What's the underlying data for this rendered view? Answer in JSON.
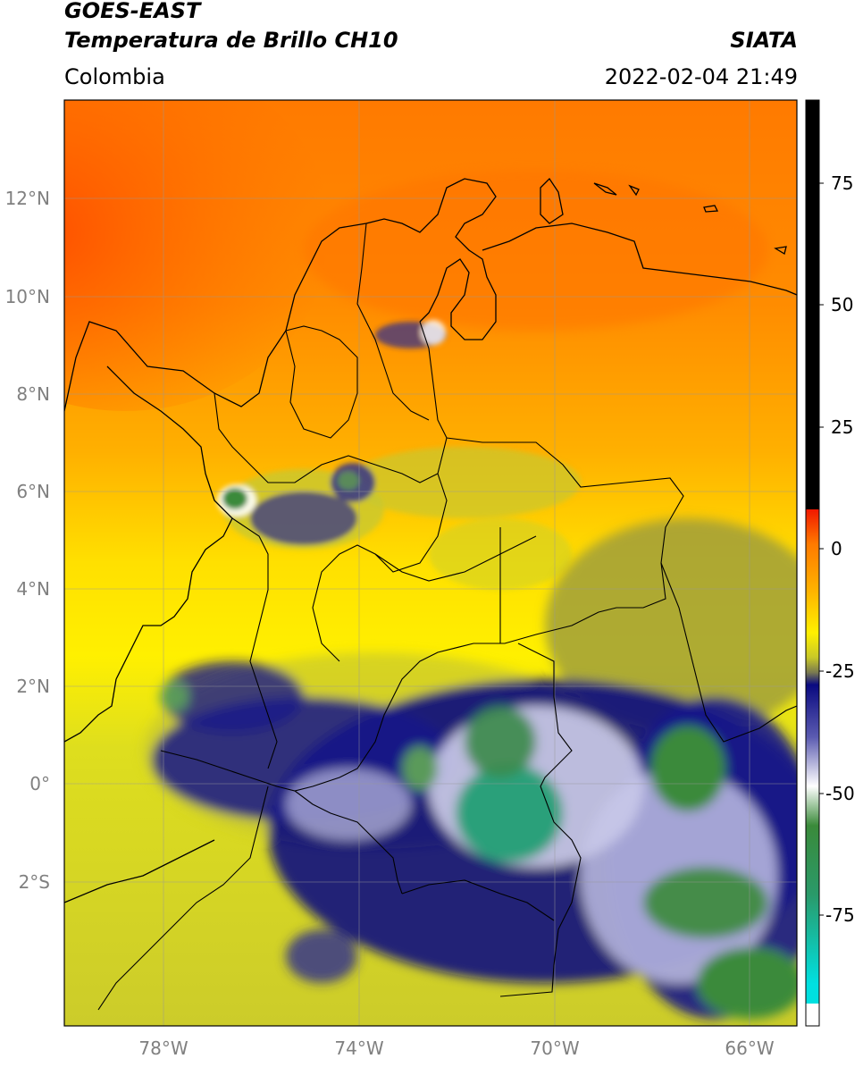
{
  "header": {
    "satellite": "GOES-EAST",
    "product": "Temperatura de Brillo CH10",
    "region": "Colombia",
    "source": "SIATA",
    "datetime": "2022-02-04 21:49"
  },
  "map": {
    "lon_range": [
      -80,
      -65
    ],
    "lat_range": [
      -5,
      14
    ],
    "lat_ticks": [
      {
        "value": 12,
        "label": "12°N"
      },
      {
        "value": 10,
        "label": "10°N"
      },
      {
        "value": 8,
        "label": "8°N"
      },
      {
        "value": 6,
        "label": "6°N"
      },
      {
        "value": 4,
        "label": "4°N"
      },
      {
        "value": 2,
        "label": "2°N"
      },
      {
        "value": 0,
        "label": "0°"
      },
      {
        "value": -2,
        "label": "2°S"
      }
    ],
    "lon_ticks": [
      {
        "value": -78,
        "label": "78°W"
      },
      {
        "value": -74,
        "label": "74°W"
      },
      {
        "value": -70,
        "label": "70°W"
      },
      {
        "value": -66,
        "label": "66°W"
      }
    ],
    "grid": true
  },
  "colorbar": {
    "range": [
      -95,
      90
    ],
    "ticks": [
      {
        "value": 75,
        "label": "75"
      },
      {
        "value": 50,
        "label": "50"
      },
      {
        "value": 25,
        "label": "25"
      },
      {
        "value": 0,
        "label": "0"
      },
      {
        "value": -25,
        "label": "-25"
      },
      {
        "value": -50,
        "label": "-50"
      },
      {
        "value": -75,
        "label": "-75"
      }
    ],
    "colors": {
      "black_above": "#000000",
      "red": "#f01800",
      "orange": "#ff8c00",
      "yellow": "#fff000",
      "olive": "#c8c828",
      "navy": "#0a0a80",
      "white": "#ffffff",
      "green": "#3a8a3a",
      "cyan": "#00e0e0"
    }
  }
}
